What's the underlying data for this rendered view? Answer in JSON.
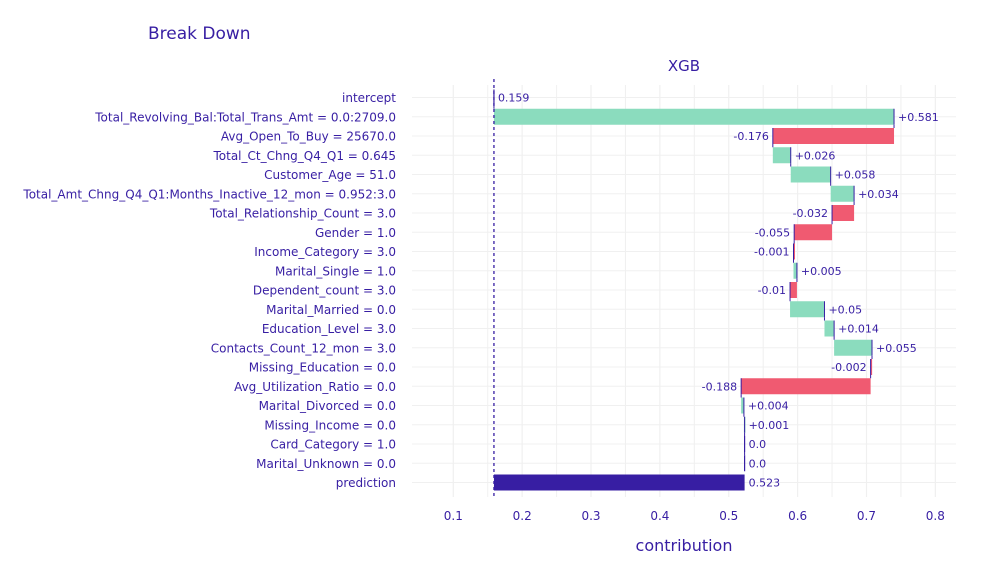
{
  "chart_data": {
    "type": "bar",
    "subtype": "waterfall-break-down",
    "title": "Break Down",
    "subtitle": "XGB",
    "xlabel": "contribution",
    "xlim": [
      0.04,
      0.83
    ],
    "xticks": [
      0.1,
      0.2,
      0.3,
      0.4,
      0.5,
      0.6,
      0.7,
      0.8
    ],
    "xtick_labels": [
      "0.1",
      "0.2",
      "0.3",
      "0.4",
      "0.5",
      "0.6",
      "0.7",
      "0.8"
    ],
    "intercept_value": 0.159,
    "grid": true,
    "colors": {
      "positive": "#8bdcbe",
      "negative": "#f05a71",
      "prediction": "#371ea3",
      "text": "#371ea3",
      "grid": "#f0f0f0"
    },
    "rows": [
      {
        "label": "intercept",
        "contribution": 0.159,
        "text": "0.159",
        "kind": "intercept",
        "start": 0.159,
        "end": 0.159
      },
      {
        "label": "Total_Revolving_Bal:Total_Trans_Amt = 0.0:2709.0",
        "contribution": 0.581,
        "text": "+0.581",
        "kind": "positive",
        "start": 0.159,
        "end": 0.74
      },
      {
        "label": "Avg_Open_To_Buy = 25670.0",
        "contribution": -0.176,
        "text": "-0.176",
        "kind": "negative",
        "start": 0.74,
        "end": 0.564
      },
      {
        "label": "Total_Ct_Chng_Q4_Q1 = 0.645",
        "contribution": 0.026,
        "text": "+0.026",
        "kind": "positive",
        "start": 0.564,
        "end": 0.59
      },
      {
        "label": "Customer_Age = 51.0",
        "contribution": 0.058,
        "text": "+0.058",
        "kind": "positive",
        "start": 0.59,
        "end": 0.648
      },
      {
        "label": "Total_Amt_Chng_Q4_Q1:Months_Inactive_12_mon = 0.952:3.0",
        "contribution": 0.034,
        "text": "+0.034",
        "kind": "positive",
        "start": 0.648,
        "end": 0.682
      },
      {
        "label": "Total_Relationship_Count = 3.0",
        "contribution": -0.032,
        "text": "-0.032",
        "kind": "negative",
        "start": 0.682,
        "end": 0.65
      },
      {
        "label": "Gender = 1.0",
        "contribution": -0.055,
        "text": "-0.055",
        "kind": "negative",
        "start": 0.65,
        "end": 0.595
      },
      {
        "label": "Income_Category = 3.0",
        "contribution": -0.001,
        "text": "-0.001",
        "kind": "negative",
        "start": 0.595,
        "end": 0.594
      },
      {
        "label": "Marital_Single = 1.0",
        "contribution": 0.005,
        "text": "+0.005",
        "kind": "positive",
        "start": 0.594,
        "end": 0.599
      },
      {
        "label": "Dependent_count = 3.0",
        "contribution": -0.01,
        "text": "-0.01",
        "kind": "negative",
        "start": 0.599,
        "end": 0.589
      },
      {
        "label": "Marital_Married = 0.0",
        "contribution": 0.05,
        "text": "+0.05",
        "kind": "positive",
        "start": 0.589,
        "end": 0.639
      },
      {
        "label": "Education_Level = 3.0",
        "contribution": 0.014,
        "text": "+0.014",
        "kind": "positive",
        "start": 0.639,
        "end": 0.653
      },
      {
        "label": "Contacts_Count_12_mon = 3.0",
        "contribution": 0.055,
        "text": "+0.055",
        "kind": "positive",
        "start": 0.653,
        "end": 0.708
      },
      {
        "label": "Missing_Education = 0.0",
        "contribution": -0.002,
        "text": "-0.002",
        "kind": "negative",
        "start": 0.708,
        "end": 0.706
      },
      {
        "label": "Avg_Utilization_Ratio = 0.0",
        "contribution": -0.188,
        "text": "-0.188",
        "kind": "negative",
        "start": 0.706,
        "end": 0.518
      },
      {
        "label": "Marital_Divorced = 0.0",
        "contribution": 0.004,
        "text": "+0.004",
        "kind": "positive",
        "start": 0.518,
        "end": 0.522
      },
      {
        "label": "Missing_Income = 0.0",
        "contribution": 0.001,
        "text": "+0.001",
        "kind": "positive",
        "start": 0.522,
        "end": 0.523
      },
      {
        "label": "Card_Category = 1.0",
        "contribution": 0.0,
        "text": "0.0",
        "kind": "zero",
        "start": 0.523,
        "end": 0.523
      },
      {
        "label": "Marital_Unknown = 0.0",
        "contribution": 0.0,
        "text": "0.0",
        "kind": "zero",
        "start": 0.523,
        "end": 0.523
      },
      {
        "label": "prediction",
        "contribution": 0.523,
        "text": "0.523",
        "kind": "prediction",
        "start": 0.159,
        "end": 0.523
      }
    ]
  }
}
